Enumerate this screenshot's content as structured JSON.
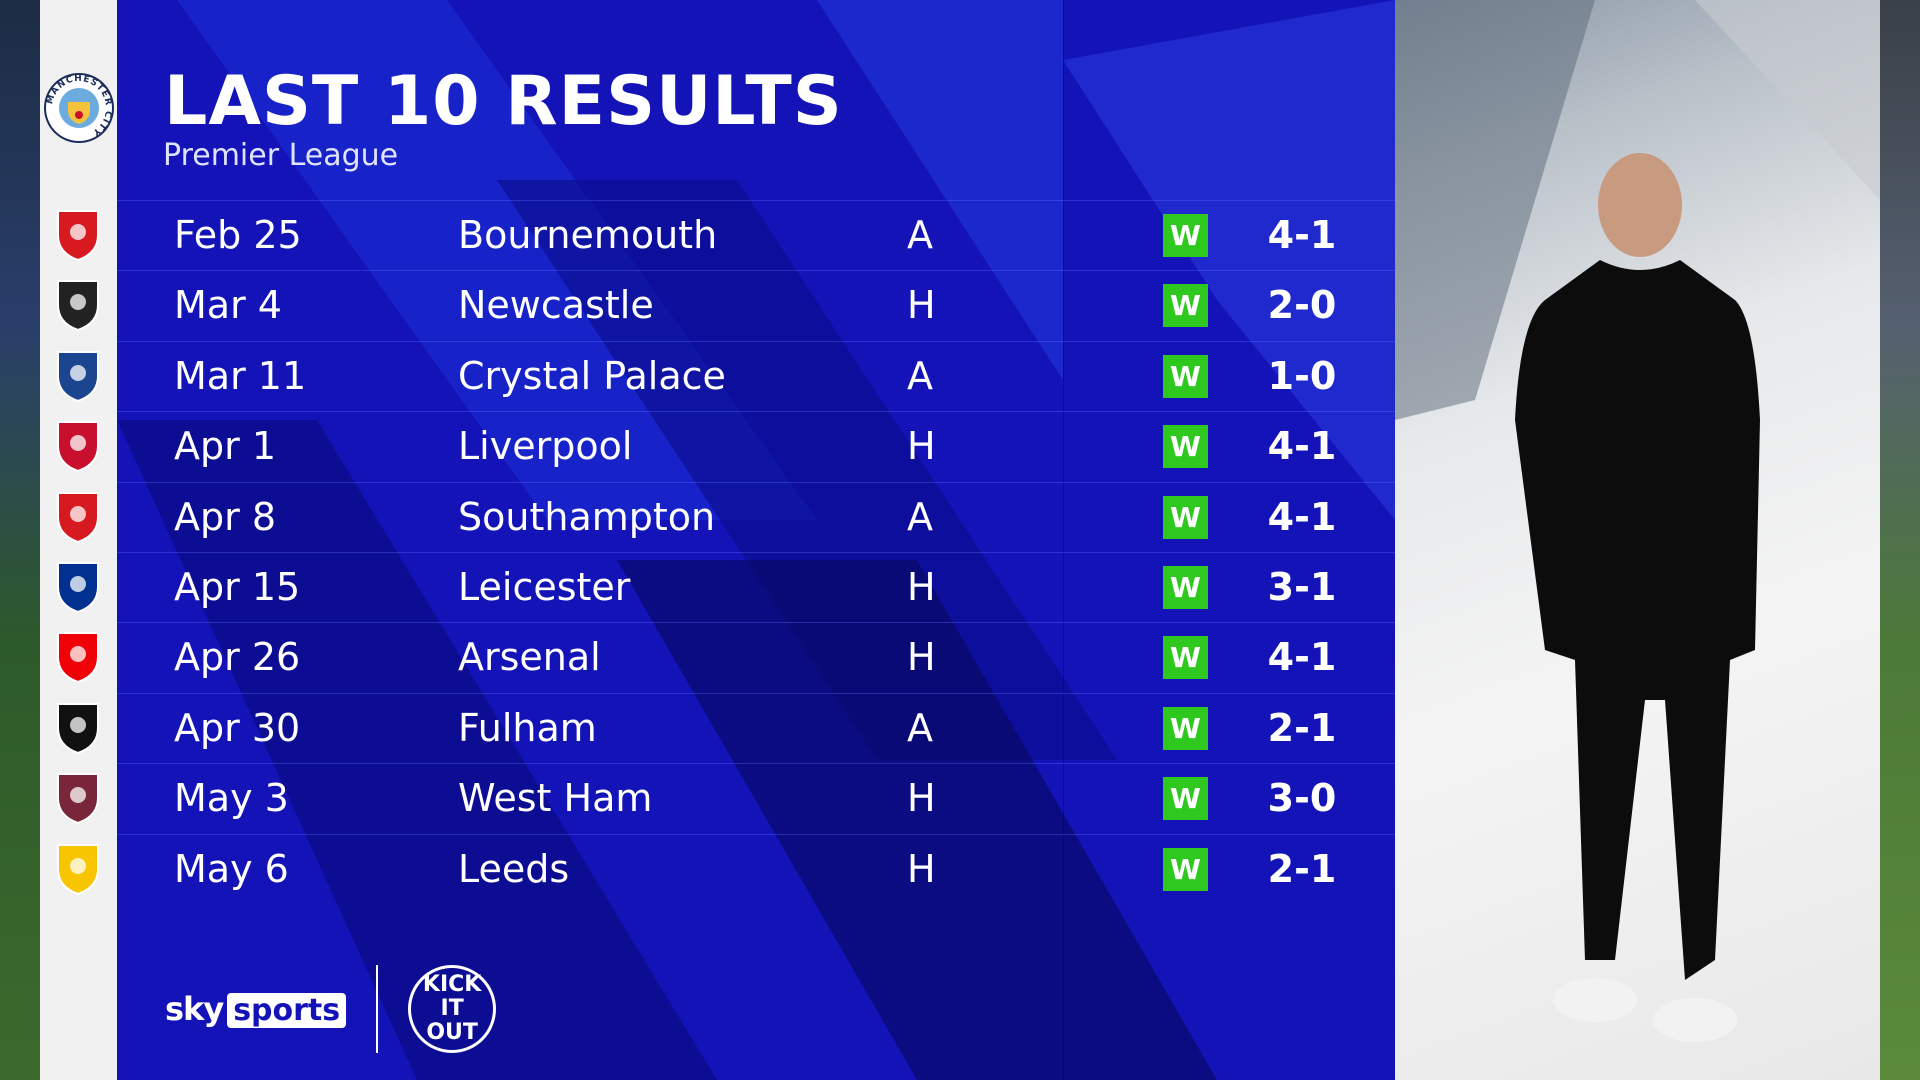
{
  "header": {
    "title": "LAST 10 RESULTS",
    "subtitle": "Premier League"
  },
  "team": {
    "name": "Manchester City",
    "crest": "man-city-crest"
  },
  "colors": {
    "panel": "#1313b8",
    "win": "#2ec81e"
  },
  "results": [
    {
      "date": "Feb 25",
      "opponent": "Bournemouth",
      "venue": "A",
      "result": "W",
      "score": "4-1",
      "crest_color": "#d71920"
    },
    {
      "date": "Mar 4",
      "opponent": "Newcastle",
      "venue": "H",
      "result": "W",
      "score": "2-0",
      "crest_color": "#222222"
    },
    {
      "date": "Mar 11",
      "opponent": "Crystal Palace",
      "venue": "A",
      "result": "W",
      "score": "1-0",
      "crest_color": "#1b458f"
    },
    {
      "date": "Apr 1",
      "opponent": "Liverpool",
      "venue": "H",
      "result": "W",
      "score": "4-1",
      "crest_color": "#c8102e"
    },
    {
      "date": "Apr 8",
      "opponent": "Southampton",
      "venue": "A",
      "result": "W",
      "score": "4-1",
      "crest_color": "#d71920"
    },
    {
      "date": "Apr 15",
      "opponent": "Leicester",
      "venue": "H",
      "result": "W",
      "score": "3-1",
      "crest_color": "#003090"
    },
    {
      "date": "Apr 26",
      "opponent": "Arsenal",
      "venue": "H",
      "result": "W",
      "score": "4-1",
      "crest_color": "#ef0107"
    },
    {
      "date": "Apr 30",
      "opponent": "Fulham",
      "venue": "A",
      "result": "W",
      "score": "2-1",
      "crest_color": "#111111"
    },
    {
      "date": "May 3",
      "opponent": "West Ham",
      "venue": "H",
      "result": "W",
      "score": "3-0",
      "crest_color": "#7a263a"
    },
    {
      "date": "May 6",
      "opponent": "Leeds",
      "venue": "H",
      "result": "W",
      "score": "2-1",
      "crest_color": "#f7c600"
    }
  ],
  "footer": {
    "sky": "sky",
    "sports": "sports",
    "kick_it_out": "KICK IT OUT"
  }
}
